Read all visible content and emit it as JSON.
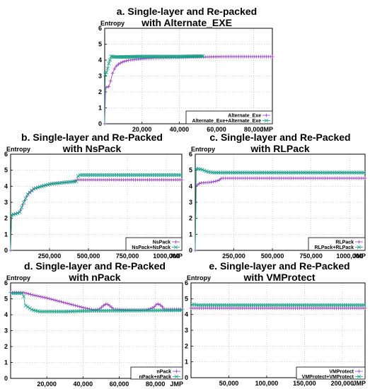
{
  "figure": {
    "palette": {
      "purple": "#9b3fc0",
      "teal": "#1a9f86",
      "frame": "#000000",
      "grid": "#aaaaaa"
    },
    "icons": {
      "purple": "plus-marker-icon",
      "teal": "x-marker-icon"
    }
  },
  "chart_data": [
    {
      "type": "line",
      "title": [
        "a. Single-layer and Re-packed",
        "with Alternate_EXE"
      ],
      "ylabel": "Entropy",
      "xunit": "JMP",
      "xlim": [
        0,
        90000
      ],
      "ylim": [
        0,
        6
      ],
      "xticks": [
        20000,
        40000,
        60000,
        80000
      ],
      "xtick_labels": [
        "20,000",
        "40,000",
        "60,000",
        "80,000"
      ],
      "yticks": [
        0,
        1,
        2,
        3,
        4,
        5,
        6
      ],
      "grid": true,
      "legend": "bottom-right",
      "series": [
        {
          "name": "Alternate_Exe",
          "color": "purple",
          "marker": "plus",
          "end": 90000,
          "points": [
            [
              0,
              0
            ],
            [
              300,
              2.3
            ],
            [
              1200,
              2.3
            ],
            [
              2000,
              2.3
            ],
            [
              3000,
              2.6
            ],
            [
              4000,
              3.1
            ],
            [
              5000,
              3.4
            ],
            [
              6000,
              3.6
            ],
            [
              8000,
              3.8
            ],
            [
              10000,
              3.9
            ],
            [
              13000,
              4.0
            ],
            [
              17000,
              4.05
            ],
            [
              22000,
              4.1
            ],
            [
              30000,
              4.15
            ],
            [
              40000,
              4.18
            ],
            [
              52000,
              4.2
            ],
            [
              65000,
              4.22
            ],
            [
              90000,
              4.22
            ]
          ]
        },
        {
          "name": "Alternate_Exe+Alternate_Exe",
          "color": "teal",
          "marker": "x",
          "end": 53000,
          "points": [
            [
              0,
              0
            ],
            [
              300,
              3.1
            ],
            [
              1200,
              3.3
            ],
            [
              2200,
              3.8
            ],
            [
              3500,
              4.25
            ],
            [
              5000,
              4.2
            ],
            [
              8000,
              4.2
            ],
            [
              20000,
              4.22
            ],
            [
              40000,
              4.22
            ],
            [
              53000,
              4.25
            ]
          ]
        }
      ]
    },
    {
      "type": "line",
      "title": [
        "b. Single-layer and Re-Packed",
        "with NsPack"
      ],
      "ylabel": "Entropy",
      "xunit": "JMP",
      "xlim": [
        0,
        1100000
      ],
      "ylim": [
        0,
        6
      ],
      "xticks": [
        250000,
        500000,
        750000,
        1000000
      ],
      "xtick_labels": [
        "250,000",
        "500,000",
        "750,000",
        "1000,000"
      ],
      "yticks": [
        0,
        1,
        2,
        3,
        4,
        5,
        6
      ],
      "grid": true,
      "legend": "bottom-right",
      "series": [
        {
          "name": "NsPack",
          "color": "purple",
          "marker": "plus",
          "end": 1100000,
          "points": [
            [
              0,
              0
            ],
            [
              5000,
              2.2
            ],
            [
              40000,
              2.3
            ],
            [
              60000,
              2.4
            ],
            [
              80000,
              2.9
            ],
            [
              110000,
              3.5
            ],
            [
              150000,
              3.85
            ],
            [
              200000,
              4.0
            ],
            [
              260000,
              4.15
            ],
            [
              330000,
              4.22
            ],
            [
              400000,
              4.3
            ],
            [
              430000,
              4.4
            ],
            [
              1100000,
              4.4
            ]
          ]
        },
        {
          "name": "NsPack+NsPack",
          "color": "teal",
          "marker": "x",
          "end": 1100000,
          "points": [
            [
              0,
              0
            ],
            [
              5000,
              2.2
            ],
            [
              40000,
              2.3
            ],
            [
              60000,
              2.4
            ],
            [
              80000,
              2.9
            ],
            [
              110000,
              3.5
            ],
            [
              150000,
              3.85
            ],
            [
              200000,
              4.0
            ],
            [
              260000,
              4.15
            ],
            [
              330000,
              4.22
            ],
            [
              425000,
              4.3
            ],
            [
              435000,
              4.7
            ],
            [
              1100000,
              4.7
            ]
          ]
        }
      ]
    },
    {
      "type": "line",
      "title": [
        "c. Single-layer and Re-Packed",
        "with RLPack"
      ],
      "ylabel": "Entropy",
      "xunit": "JMP",
      "xlim": [
        0,
        1100000
      ],
      "ylim": [
        0,
        6
      ],
      "xticks": [
        250000,
        500000,
        750000,
        1000000
      ],
      "xtick_labels": [
        "250,000",
        "500,000",
        "750,000",
        "1000,000"
      ],
      "yticks": [
        0,
        1,
        2,
        3,
        4,
        5,
        6
      ],
      "grid": true,
      "legend": "bottom-right",
      "series": [
        {
          "name": "RLPack",
          "color": "purple",
          "marker": "plus",
          "end": 1100000,
          "points": [
            [
              0,
              0
            ],
            [
              4000,
              4.0
            ],
            [
              30000,
              4.2
            ],
            [
              100000,
              4.25
            ],
            [
              150000,
              4.35
            ],
            [
              170000,
              4.5
            ],
            [
              1100000,
              4.5
            ]
          ]
        },
        {
          "name": "RLPack+RLPack",
          "color": "teal",
          "marker": "x",
          "end": 1100000,
          "points": [
            [
              0,
              0
            ],
            [
              4000,
              5.1
            ],
            [
              40000,
              5.05
            ],
            [
              80000,
              4.9
            ],
            [
              120000,
              4.85
            ],
            [
              1100000,
              4.85
            ]
          ]
        }
      ]
    },
    {
      "type": "line",
      "title": [
        "d. Single-layer and Re-Packed",
        "with nPack"
      ],
      "ylabel": "Entropy",
      "xunit": "JMP",
      "xlim": [
        0,
        95000
      ],
      "ylim": [
        0,
        6
      ],
      "xticks": [
        20000,
        40000,
        60000,
        80000
      ],
      "xtick_labels": [
        "20,000",
        "40,000",
        "60,000",
        "80,000"
      ],
      "yticks": [
        0,
        1,
        2,
        3,
        4,
        5,
        6
      ],
      "grid": true,
      "legend": "bottom-right",
      "series": [
        {
          "name": "nPack",
          "color": "purple",
          "marker": "plus",
          "end": 95000,
          "points": [
            [
              0,
              5.4
            ],
            [
              7000,
              5.4
            ],
            [
              12000,
              5.25
            ],
            [
              20000,
              5.05
            ],
            [
              30000,
              4.75
            ],
            [
              40000,
              4.45
            ],
            [
              46000,
              4.3
            ],
            [
              49000,
              4.35
            ],
            [
              51000,
              4.55
            ],
            [
              53000,
              4.7
            ],
            [
              55000,
              4.55
            ],
            [
              57000,
              4.35
            ],
            [
              65000,
              4.3
            ],
            [
              75000,
              4.3
            ],
            [
              79000,
              4.45
            ],
            [
              81000,
              4.7
            ],
            [
              83000,
              4.6
            ],
            [
              85000,
              4.35
            ],
            [
              95000,
              4.35
            ]
          ]
        },
        {
          "name": "nPack+nPack",
          "color": "teal",
          "marker": "x",
          "end": 95000,
          "points": [
            [
              0,
              5.35
            ],
            [
              7000,
              5.35
            ],
            [
              8000,
              4.6
            ],
            [
              12000,
              4.3
            ],
            [
              16000,
              4.2
            ],
            [
              30000,
              4.2
            ],
            [
              45000,
              4.25
            ],
            [
              95000,
              4.28
            ]
          ]
        }
      ]
    },
    {
      "type": "line",
      "title": [
        "e. Single-layer and Re-Packed",
        "with VMProtect"
      ],
      "ylabel": "Entropy",
      "xunit": "JMP",
      "xlim": [
        0,
        230000
      ],
      "ylim": [
        0,
        6
      ],
      "xticks": [
        50000,
        100000,
        150000,
        200000
      ],
      "xtick_labels": [
        "50,000",
        "100,000",
        "150,000",
        "200,000"
      ],
      "yticks": [
        0,
        1,
        2,
        3,
        4,
        5,
        6
      ],
      "grid": true,
      "legend": "bottom-right",
      "series": [
        {
          "name": "VMProtect",
          "color": "purple",
          "marker": "plus",
          "end": 230000,
          "points": [
            [
              0,
              4.4
            ],
            [
              230000,
              4.4
            ]
          ]
        },
        {
          "name": "VMProtect+VMProtect",
          "color": "teal",
          "marker": "x",
          "end": 230000,
          "points": [
            [
              0,
              4.55
            ],
            [
              2000,
              4.65
            ],
            [
              8000,
              4.6
            ],
            [
              230000,
              4.6
            ]
          ]
        }
      ]
    }
  ]
}
